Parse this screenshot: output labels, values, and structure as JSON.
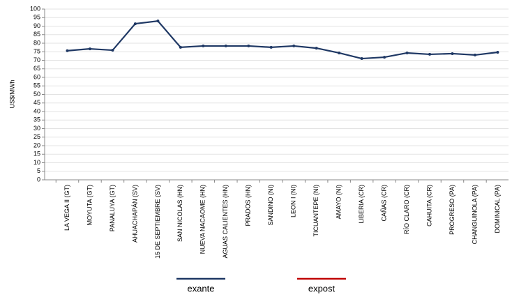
{
  "chart_data": {
    "type": "line",
    "y_label": "US$/MWh",
    "categories": [
      "LA VEGA II (GT)",
      "MOYUTA (GT)",
      "PANALUYA (GT)",
      "AHUACHAPÁN (SV)",
      "15 DE SEPTIEMBRE (SV)",
      "SAN NICOLAS (HN)",
      "NUEVA NACAOME (HN)",
      "AGUAS CALIENTES (HN)",
      "PRADOS (HN)",
      "SANDINO (NI)",
      "LEON I (NI)",
      "TICUANTEPE (NI)",
      "AMAYO (NI)",
      "LIBERIA (CR)",
      "CAÑAS (CR)",
      "RÍO CLARO (CR)",
      "CAHUITA (CR)",
      "PROGRESO (PA)",
      "CHANGUINOLA (PA)",
      "DOMINICAL (PA)"
    ],
    "series": [
      {
        "name": "exante",
        "color": "#1f3864",
        "values": [
          75.6,
          76.7,
          75.9,
          91.4,
          93.0,
          77.6,
          78.4,
          78.4,
          78.4,
          77.6,
          78.4,
          77.1,
          74.3,
          71.0,
          71.8,
          74.3,
          73.5,
          73.9,
          73.1,
          74.7
        ]
      },
      {
        "name": "expost",
        "color": "#c00000",
        "values": [
          null,
          null,
          null,
          null,
          null,
          null,
          null,
          null,
          null,
          null,
          null,
          null,
          null,
          null,
          null,
          null,
          null,
          null,
          null,
          null
        ]
      }
    ],
    "ylim": [
      0,
      100
    ],
    "yticks": [
      0,
      5,
      10,
      15,
      20,
      25,
      30,
      35,
      40,
      45,
      50,
      55,
      60,
      65,
      70,
      75,
      80,
      85,
      90,
      95,
      100
    ],
    "grid": true,
    "legend": "bottom"
  }
}
